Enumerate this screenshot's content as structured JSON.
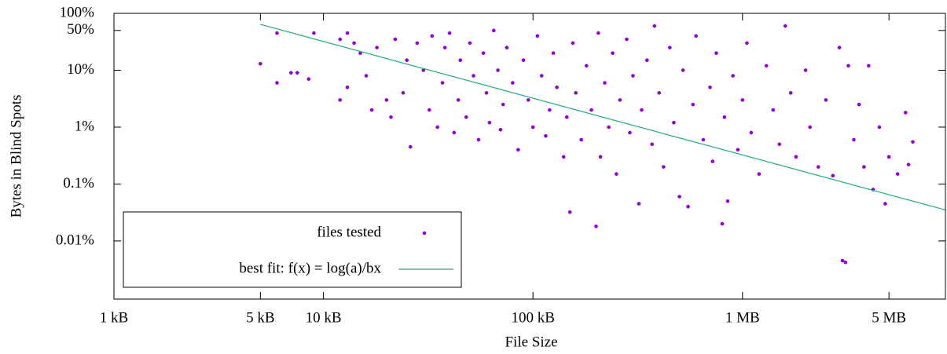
{
  "chart_data": {
    "type": "scatter",
    "xlabel": "File Size",
    "ylabel": "Bytes in Blind Spots",
    "xscale": "log",
    "yscale": "log",
    "xlim": [
      1000,
      9300000
    ],
    "ylim": [
      0.00095,
      100
    ],
    "xticks": [
      {
        "value": 1000,
        "label": "1 kB"
      },
      {
        "value": 5000,
        "label": "5 kB"
      },
      {
        "value": 10000,
        "label": "10 kB"
      },
      {
        "value": 100000,
        "label": "100 kB"
      },
      {
        "value": 1000000,
        "label": "1 MB"
      },
      {
        "value": 5000000,
        "label": "5 MB"
      }
    ],
    "yticks": [
      {
        "value": 0.01,
        "label": "0.01%"
      },
      {
        "value": 0.1,
        "label": "0.1%"
      },
      {
        "value": 1,
        "label": "1%"
      },
      {
        "value": 10,
        "label": "10%"
      },
      {
        "value": 50,
        "label": "50%"
      },
      {
        "value": 100,
        "label": "100%"
      }
    ],
    "legend": "lower left",
    "series": [
      {
        "name": "files tested",
        "color": "#9400d3",
        "kind": "points",
        "x": [
          5000,
          6000,
          7000,
          7500,
          8500,
          6000,
          9000,
          12000,
          13000,
          14000,
          12000,
          13000,
          15000,
          16000,
          17000,
          18000,
          20000,
          21000,
          22000,
          24000,
          25000,
          26000,
          28000,
          30000,
          32000,
          33000,
          35000,
          37000,
          38000,
          40000,
          42000,
          44000,
          45000,
          48000,
          50000,
          52000,
          55000,
          58000,
          60000,
          62000,
          65000,
          68000,
          70000,
          72000,
          75000,
          80000,
          85000,
          90000,
          95000,
          100000,
          105000,
          110000,
          115000,
          120000,
          125000,
          130000,
          140000,
          145000,
          150000,
          155000,
          160000,
          170000,
          180000,
          190000,
          200000,
          205000,
          210000,
          220000,
          230000,
          240000,
          250000,
          260000,
          280000,
          290000,
          300000,
          320000,
          330000,
          350000,
          370000,
          380000,
          400000,
          420000,
          450000,
          470000,
          500000,
          520000,
          550000,
          580000,
          600000,
          650000,
          700000,
          720000,
          750000,
          800000,
          820000,
          850000,
          900000,
          950000,
          1000000,
          1050000,
          1100000,
          1200000,
          1300000,
          1400000,
          1500000,
          1600000,
          1700000,
          1800000,
          2000000,
          2100000,
          2300000,
          2500000,
          2700000,
          2900000,
          3000000,
          3100000,
          3200000,
          3400000,
          3600000,
          3800000,
          4000000,
          4200000,
          4500000,
          4800000,
          5000000,
          5500000,
          6000000,
          6500000,
          6200000
        ],
        "values": [
          13,
          6,
          9,
          9,
          7,
          45,
          45,
          35,
          45,
          30,
          3,
          5,
          20,
          8,
          2,
          25,
          3,
          1.5,
          35,
          4,
          15,
          0.45,
          30,
          10,
          2,
          40,
          1,
          6,
          25,
          45,
          0.8,
          3,
          15,
          1.5,
          30,
          8,
          0.6,
          20,
          4,
          1.2,
          50,
          10,
          0.9,
          2.5,
          25,
          6,
          0.4,
          15,
          3,
          1,
          40,
          8,
          0.7,
          2,
          20,
          5,
          0.3,
          1.5,
          0.032,
          30,
          4,
          0.6,
          12,
          2,
          0.018,
          45,
          0.3,
          6,
          1,
          20,
          0.15,
          3,
          35,
          0.8,
          8,
          0.045,
          2,
          15,
          0.5,
          60,
          4,
          0.2,
          25,
          1.2,
          0.06,
          10,
          0.04,
          2.5,
          40,
          0.6,
          5,
          0.25,
          20,
          0.02,
          1.5,
          0.05,
          8,
          0.4,
          3,
          30,
          0.8,
          0.15,
          12,
          2,
          0.5,
          60,
          4,
          0.3,
          10,
          1,
          0.2,
          3,
          0.14,
          25,
          0.0045,
          0.0042,
          12,
          0.6,
          2.5,
          0.2,
          12,
          0.08,
          1,
          0.045,
          0.3,
          0.15,
          1.8,
          0.55,
          0.22
        ]
      },
      {
        "name": "best fit: f(x) = log(a)/bx",
        "color": "#21a883",
        "kind": "line",
        "x": [
          5000,
          9300000
        ],
        "values": [
          64,
          0.035
        ]
      }
    ]
  }
}
